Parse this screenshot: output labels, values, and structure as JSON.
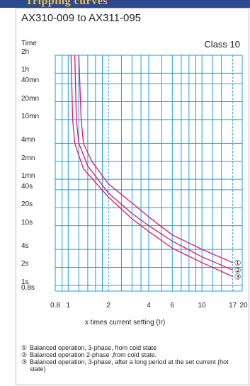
{
  "banner": {
    "text": "Tripping curves"
  },
  "chart_data": {
    "type": "line",
    "title": "AX310-009 to AX311-095",
    "ylabel": "Time",
    "xlabel": "x times current setting (Ir)",
    "annotation": "Class 10",
    "x_scale": "log",
    "y_scale": "log",
    "xlim": [
      0.8,
      20
    ],
    "ylim_seconds": [
      0.8,
      7200
    ],
    "grid": true,
    "x_ticks": [
      {
        "value": 0.8,
        "label": "0.8"
      },
      {
        "value": 1,
        "label": "1"
      },
      {
        "value": 2,
        "label": "2"
      },
      {
        "value": 4,
        "label": "4"
      },
      {
        "value": 6,
        "label": "6"
      },
      {
        "value": 10,
        "label": "10"
      },
      {
        "value": 17,
        "label": "17"
      },
      {
        "value": 20,
        "label": "20"
      }
    ],
    "y_ticks": [
      {
        "value": 7200,
        "label": "2h"
      },
      {
        "value": 3600,
        "label": "1h"
      },
      {
        "value": 2400,
        "label": "40mn"
      },
      {
        "value": 1200,
        "label": "20mn"
      },
      {
        "value": 600,
        "label": "10mn"
      },
      {
        "value": 240,
        "label": "4mn"
      },
      {
        "value": 120,
        "label": "2mn"
      },
      {
        "value": 60,
        "label": "1mn"
      },
      {
        "value": 40,
        "label": "40s"
      },
      {
        "value": 20,
        "label": "20s"
      },
      {
        "value": 10,
        "label": "10s"
      },
      {
        "value": 4,
        "label": "4s"
      },
      {
        "value": 2,
        "label": "2s"
      },
      {
        "value": 1,
        "label": "1s"
      },
      {
        "value": 0.8,
        "label": "0.8s"
      }
    ],
    "series": [
      {
        "marker": "①",
        "x": [
          1.2,
          1.25,
          1.3,
          1.5,
          2,
          3,
          4,
          6,
          10,
          17
        ],
        "y": [
          7200,
          600,
          240,
          120,
          50,
          24,
          14,
          7,
          4,
          2.4
        ]
      },
      {
        "marker": "②",
        "x": [
          1.12,
          1.15,
          1.2,
          1.4,
          2,
          3,
          4,
          6,
          10,
          17
        ],
        "y": [
          7200,
          600,
          240,
          100,
          35,
          16,
          10,
          5.5,
          3,
          1.8
        ]
      },
      {
        "marker": "③",
        "x": [
          1.05,
          1.08,
          1.12,
          1.3,
          2,
          3,
          4,
          6,
          10,
          17
        ],
        "y": [
          7200,
          600,
          240,
          90,
          30,
          13,
          8,
          4.2,
          2.4,
          1.4
        ]
      }
    ]
  },
  "legend": [
    {
      "marker": "①",
      "text": "Balanced operation, 3-phase, from cold state"
    },
    {
      "marker": "②",
      "text": "Balanced operation 2-phase ,from cold state."
    },
    {
      "marker": "③",
      "text": "Balanced operation, 3-phase, after a long period at the set current (hot state)"
    }
  ],
  "colors": {
    "grid": "#1ea1d8",
    "curve": "#d9197a"
  }
}
